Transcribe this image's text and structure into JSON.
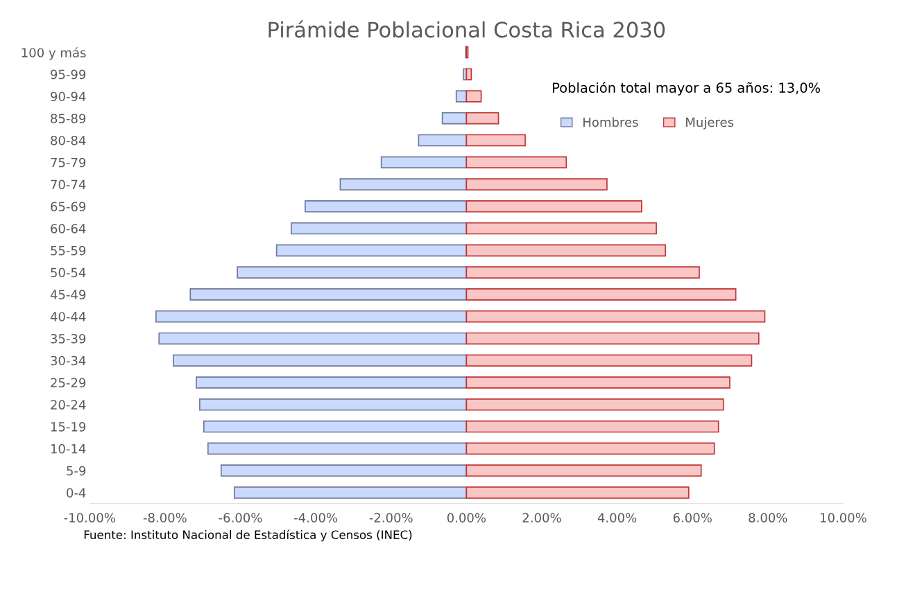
{
  "chart_data": {
    "type": "bar",
    "orientation": "horizontal",
    "title": "Pirámide Poblacional Costa Rica 2030",
    "categories": [
      "100 y más",
      "95-99",
      "90-94",
      "85-89",
      "80-84",
      "75-79",
      "70-74",
      "65-69",
      "60-64",
      "55-59",
      "50-54",
      "45-49",
      "40-44",
      "35-39",
      "30-34",
      "25-29",
      "20-24",
      "15-19",
      "10-14",
      "5-9",
      "0-4"
    ],
    "series": [
      {
        "name": "Hombres",
        "color": "#c9dafc",
        "values": [
          -0.02,
          -0.08,
          -0.27,
          -0.64,
          -1.27,
          -2.26,
          -3.35,
          -4.28,
          -4.65,
          -5.04,
          -6.08,
          -7.33,
          -8.24,
          -8.16,
          -7.78,
          -7.17,
          -7.08,
          -6.97,
          -6.86,
          -6.51,
          -6.16
        ]
      },
      {
        "name": "Mujeres",
        "color": "#f9c6c6",
        "values": [
          0.04,
          0.13,
          0.39,
          0.85,
          1.56,
          2.65,
          3.73,
          4.65,
          5.04,
          5.28,
          6.18,
          7.15,
          7.92,
          7.76,
          7.57,
          6.99,
          6.82,
          6.69,
          6.58,
          6.23,
          5.9
        ]
      }
    ],
    "xlim": [
      -10,
      10
    ],
    "xticks": [
      {
        "value": -10,
        "label": "-10.00%"
      },
      {
        "value": -8,
        "label": "-8.00%"
      },
      {
        "value": -6,
        "label": "-6.00%"
      },
      {
        "value": -4,
        "label": "-4.00%"
      },
      {
        "value": -2,
        "label": "-2.00%"
      },
      {
        "value": 0,
        "label": "0.00%"
      },
      {
        "value": 2,
        "label": "2.00%"
      },
      {
        "value": 4,
        "label": "4.00%"
      },
      {
        "value": 6,
        "label": "6.00%"
      },
      {
        "value": 8,
        "label": "8.00%"
      },
      {
        "value": 10,
        "label": "10.00%"
      }
    ],
    "grid": false,
    "stacked": true,
    "legend": "top right",
    "annotations": [
      "Población total mayor a 65 años: 13,0%",
      "Fuente: Instituto Nacional de Estadística y Censos (INEC)"
    ]
  }
}
